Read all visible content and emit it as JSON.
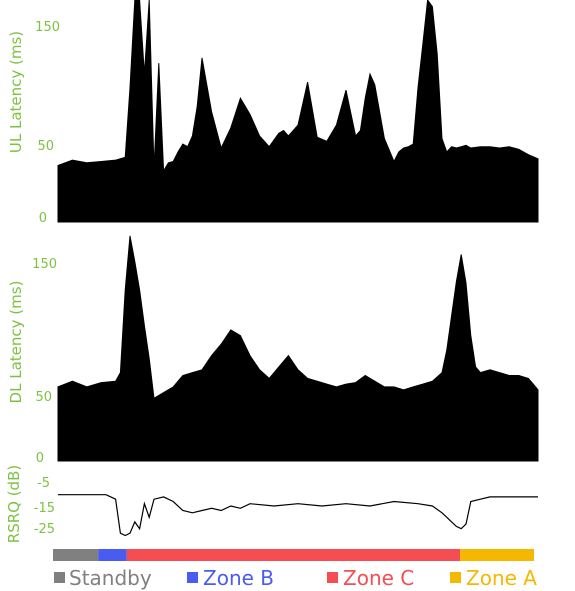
{
  "colors": {
    "axis_text": "#7dc242",
    "data": "#000000",
    "Standby": "#808080",
    "Zone B": "#4a5cf0",
    "Zone C": "#f44e53",
    "Zone A": "#f5b800"
  },
  "chart_data": [
    {
      "type": "area",
      "ylabel": "UL Latency (ms)",
      "yticks": [
        0,
        50,
        150
      ],
      "ylim": [
        0,
        165
      ],
      "x_range": [
        0,
        100
      ],
      "x": [
        0,
        3,
        6,
        9,
        12,
        14,
        15,
        16,
        17,
        18,
        19,
        20,
        21,
        22,
        23,
        24,
        25,
        26,
        27,
        28,
        29,
        30,
        32,
        34,
        36,
        38,
        40,
        42,
        44,
        46,
        47,
        48,
        50,
        52,
        54,
        56,
        58,
        60,
        62,
        63,
        64,
        65,
        66,
        68,
        70,
        71,
        72,
        73,
        74,
        75,
        76,
        77,
        78,
        79,
        80,
        81,
        82,
        83,
        84,
        85,
        86,
        88,
        90,
        92,
        94,
        96,
        98,
        100
      ],
      "y": [
        42,
        46,
        44,
        45,
        46,
        48,
        100,
        170,
        165,
        110,
        168,
        40,
        118,
        38,
        44,
        45,
        52,
        58,
        56,
        64,
        86,
        122,
        82,
        55,
        70,
        92,
        80,
        64,
        56,
        66,
        68,
        64,
        72,
        104,
        63,
        60,
        72,
        98,
        64,
        68,
        92,
        110,
        102,
        62,
        45,
        52,
        55,
        56,
        58,
        100,
        132,
        172,
        160,
        125,
        62,
        52,
        56,
        55,
        56,
        57,
        55,
        56,
        56,
        55,
        56,
        54,
        50,
        47
      ]
    },
    {
      "type": "area",
      "ylabel": "DL Latency (ms)",
      "yticks": [
        0,
        50,
        150
      ],
      "ylim": [
        0,
        160
      ],
      "x_range": [
        0,
        100
      ],
      "x": [
        0,
        3,
        6,
        9,
        12,
        13,
        14,
        15,
        16,
        17,
        18,
        19,
        20,
        22,
        24,
        26,
        28,
        30,
        32,
        34,
        36,
        38,
        40,
        42,
        44,
        46,
        48,
        50,
        52,
        54,
        56,
        58,
        60,
        62,
        64,
        66,
        68,
        70,
        72,
        74,
        76,
        78,
        80,
        81,
        82,
        83,
        84,
        85,
        86,
        87,
        88,
        90,
        92,
        94,
        96,
        98,
        100
      ],
      "y": [
        52,
        56,
        52,
        55,
        56,
        62,
        120,
        158,
        140,
        120,
        95,
        72,
        44,
        48,
        52,
        60,
        62,
        64,
        74,
        82,
        92,
        88,
        74,
        64,
        58,
        66,
        74,
        64,
        58,
        56,
        54,
        52,
        54,
        55,
        60,
        56,
        52,
        52,
        50,
        52,
        54,
        56,
        62,
        78,
        102,
        126,
        145,
        125,
        88,
        66,
        62,
        64,
        62,
        60,
        60,
        58,
        50
      ]
    },
    {
      "type": "line",
      "ylabel": "RSRQ (dB)",
      "yticks": [
        -5,
        -15,
        -25
      ],
      "ylim": [
        -30,
        0
      ],
      "x_range": [
        0,
        100
      ],
      "x": [
        0,
        10,
        11,
        12,
        13,
        14,
        15,
        16,
        17,
        18,
        19,
        20,
        22,
        24,
        26,
        28,
        30,
        32,
        34,
        36,
        38,
        40,
        45,
        50,
        55,
        60,
        65,
        70,
        75,
        78,
        80,
        81,
        82,
        83,
        84,
        85,
        86,
        88,
        90,
        95,
        100
      ],
      "y": [
        -10,
        -10,
        -11,
        -12,
        -27,
        -28,
        -27,
        -22,
        -25,
        -14,
        -20,
        -12,
        -11,
        -13,
        -17,
        -18,
        -17,
        -16,
        -17,
        -15,
        -16,
        -14,
        -15,
        -14,
        -15,
        -14,
        -15,
        -13,
        -14,
        -15,
        -18,
        -20,
        -22,
        -24,
        -25,
        -23,
        -13,
        -12,
        -11,
        -11,
        -11
      ]
    },
    {
      "type": "bar",
      "categories": [
        "Standby",
        "Zone B",
        "Zone C",
        "Zone A"
      ],
      "values": [
        9.5,
        6,
        70,
        15.5
      ]
    }
  ]
}
